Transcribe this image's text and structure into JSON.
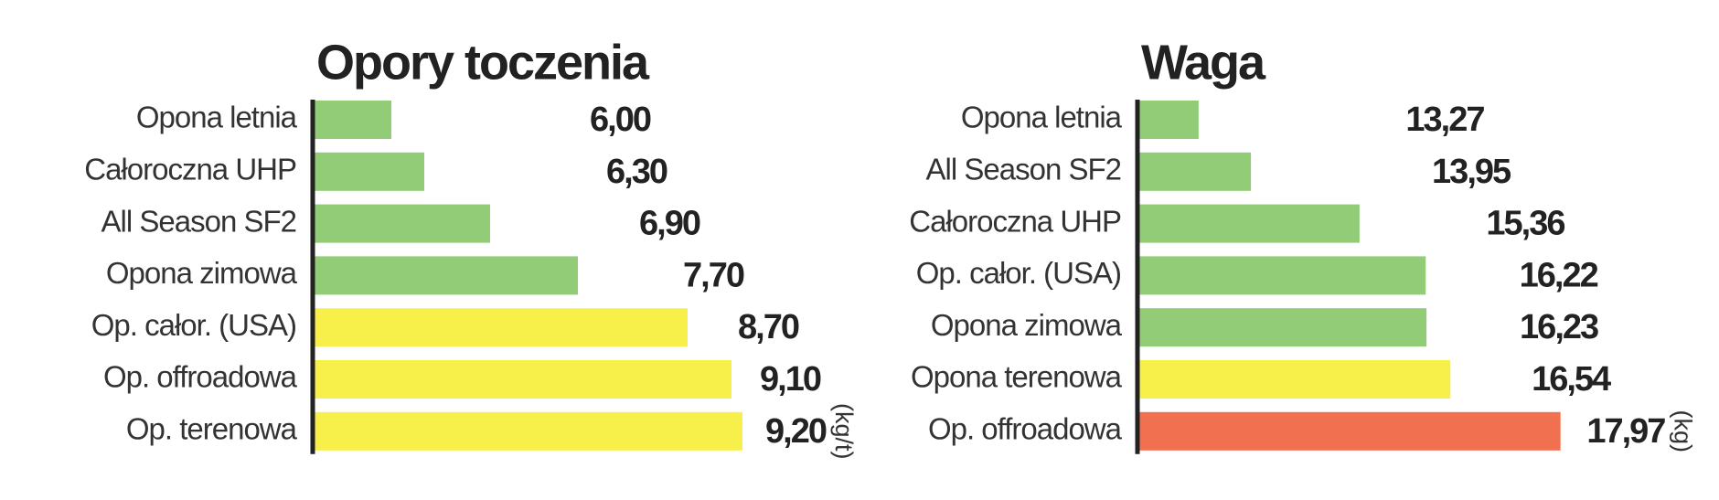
{
  "chart_data": [
    {
      "type": "bar",
      "orientation": "horizontal",
      "title": "Opory toczenia",
      "unit": "(kg/t)",
      "categories": [
        "Opona letnia",
        "Całoroczna UHP",
        "All Season SF2",
        "Opona zimowa",
        "Op. całor. (USA)",
        "Op. offroadowa",
        "Op. terenowa"
      ],
      "values": [
        6.0,
        6.3,
        6.9,
        7.7,
        8.7,
        9.1,
        9.2
      ],
      "value_labels": [
        "6,00",
        "6,30",
        "6,90",
        "7,70",
        "8,70",
        "9,10",
        "9,20"
      ],
      "colors": [
        "#92cc76",
        "#92cc76",
        "#92cc76",
        "#92cc76",
        "#f8f04a",
        "#f8f04a",
        "#f8f04a"
      ],
      "xlim": [
        5.3,
        9.3
      ]
    },
    {
      "type": "bar",
      "orientation": "horizontal",
      "title": "Waga",
      "unit": "(kg)",
      "categories": [
        "Opona letnia",
        "All Season SF2",
        "Całoroczna UHP",
        "Op. całor. (USA)",
        "Opona zimowa",
        "Opona terenowa",
        "Op. offroadowa"
      ],
      "values": [
        13.27,
        13.95,
        15.36,
        16.22,
        16.23,
        16.54,
        17.97
      ],
      "value_labels": [
        "13,27",
        "13,95",
        "15,36",
        "16,22",
        "16,23",
        "16,54",
        "17,97"
      ],
      "colors": [
        "#92cc76",
        "#92cc76",
        "#92cc76",
        "#92cc76",
        "#92cc76",
        "#f8f04a",
        "#f07050"
      ],
      "xlim": [
        12.5,
        18.2
      ]
    }
  ]
}
